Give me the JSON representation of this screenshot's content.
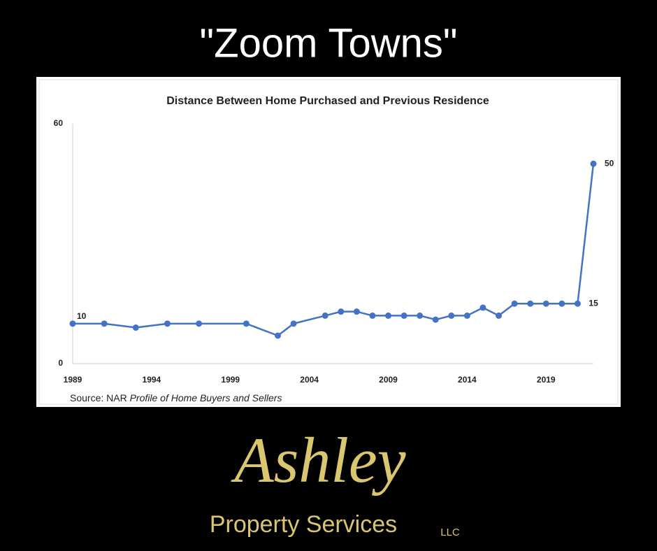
{
  "heading": "\"Zoom Towns\"",
  "chart_data": {
    "type": "line",
    "title": "Distance Between Home Purchased and Previous Residence",
    "x": [
      1989,
      1991,
      1993,
      1995,
      1997,
      2000,
      2002,
      2003,
      2005,
      2006,
      2007,
      2008,
      2009,
      2010,
      2011,
      2012,
      2013,
      2014,
      2015,
      2016,
      2017,
      2018,
      2019,
      2020,
      2021,
      2022
    ],
    "values": [
      10,
      10,
      9,
      10,
      10,
      10,
      7,
      10,
      12,
      13,
      13,
      12,
      12,
      12,
      12,
      11,
      12,
      12,
      14,
      12,
      15,
      15,
      15,
      15,
      15,
      50
    ],
    "value_labels": [
      "10",
      null,
      null,
      null,
      null,
      null,
      null,
      null,
      null,
      null,
      null,
      null,
      null,
      null,
      null,
      null,
      null,
      null,
      null,
      null,
      null,
      null,
      null,
      null,
      "15",
      "50"
    ],
    "color": "#4472c4",
    "xlim": [
      1989,
      2022
    ],
    "xticks": [
      1989,
      1994,
      1999,
      2004,
      2009,
      2014,
      2019
    ],
    "ylim": [
      0,
      60
    ],
    "yticks": [
      0,
      60
    ],
    "source_prefix": "Source: NAR",
    "source_title": "Profile of Home Buyers and Sellers"
  },
  "logo": {
    "script": "Ashley",
    "name": "Property Services",
    "suffix": "LLC"
  }
}
